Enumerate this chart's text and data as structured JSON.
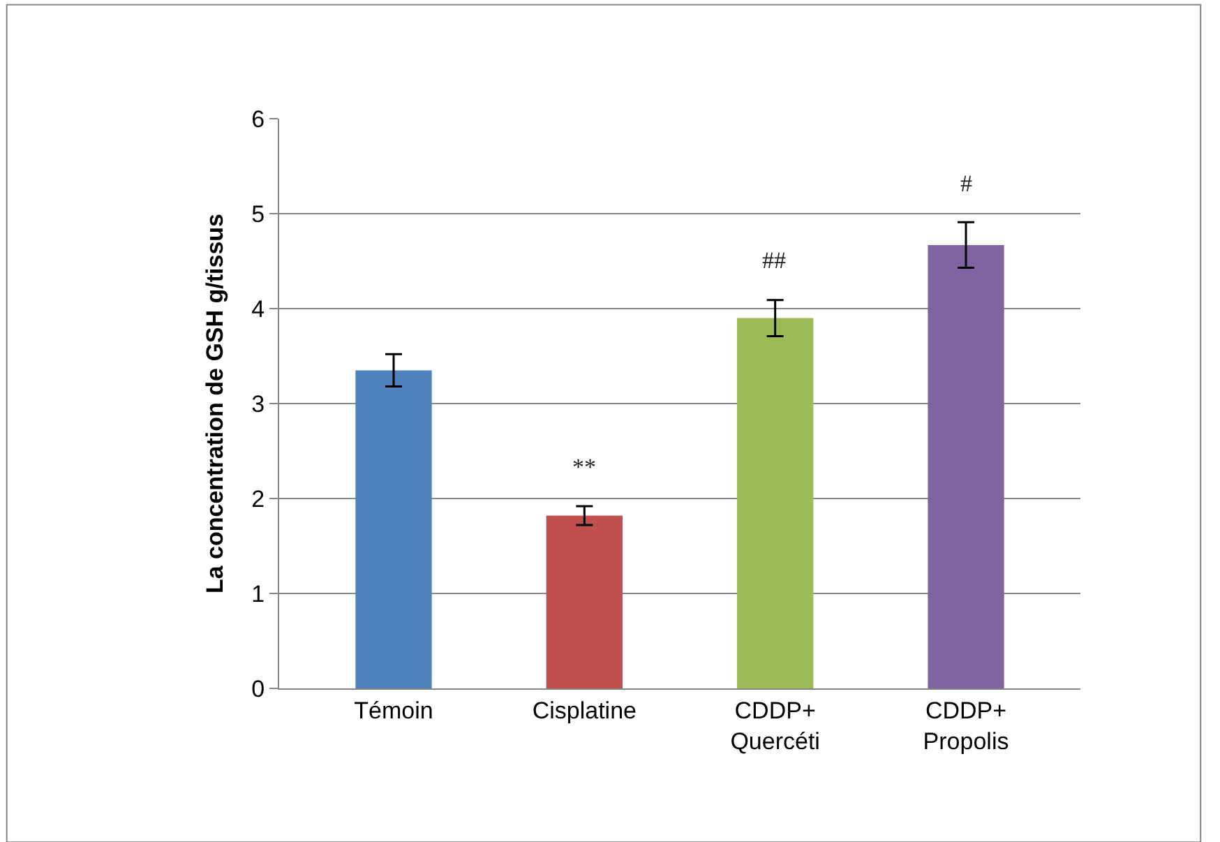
{
  "chart_data": {
    "type": "bar",
    "ylabel": "La concentration de GSH g/tissus",
    "categories": [
      "Témoin",
      "Cisplatine",
      "CDDP+\nQuercéti",
      "CDDP+\nPropolis"
    ],
    "values": [
      3.35,
      1.82,
      3.9,
      4.67
    ],
    "colors": [
      "#4f81bd",
      "#c0504d",
      "#9bbb59",
      "#8064a2"
    ],
    "errors": [
      0.17,
      0.1,
      0.19,
      0.24
    ],
    "ylim": [
      0,
      6
    ],
    "yticks": [
      0,
      1,
      2,
      3,
      4,
      5,
      6
    ],
    "grid": "y",
    "annotations": [
      "**",
      "##",
      "#"
    ]
  }
}
